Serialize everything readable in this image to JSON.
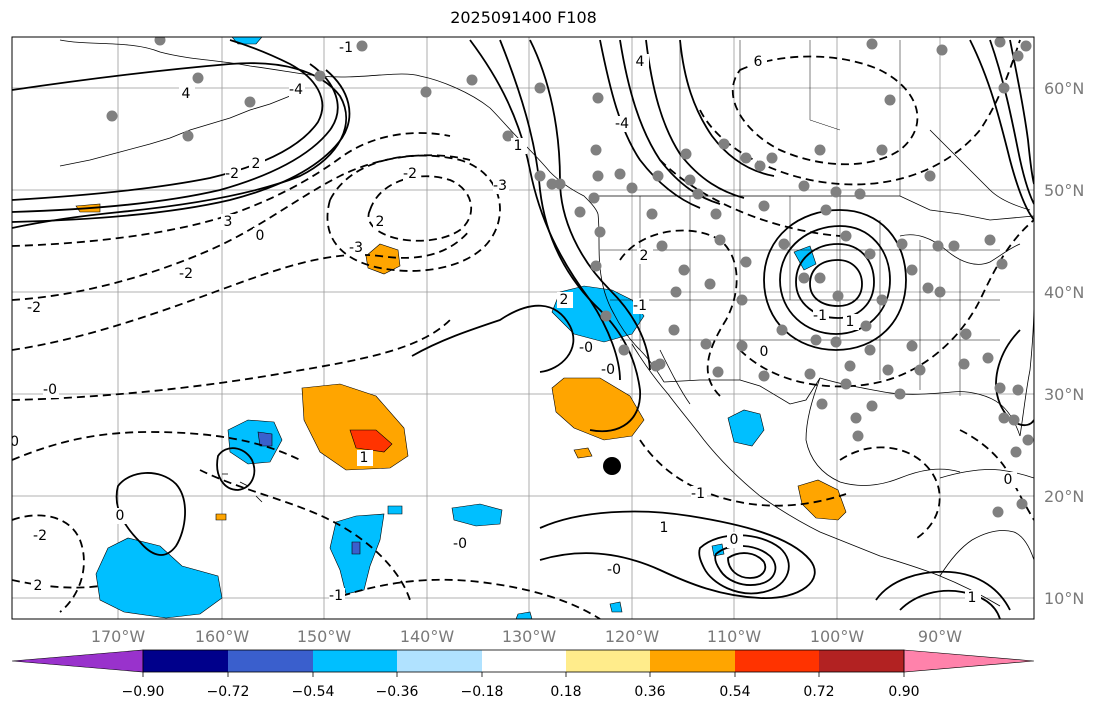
{
  "title": "2025091400 F108",
  "map": {
    "lat_labels": [
      "60°N",
      "50°N",
      "40°N",
      "30°N",
      "20°N",
      "10°N"
    ],
    "lon_labels": [
      "170°W",
      "160°W",
      "150°W",
      "140°W",
      "130°W",
      "120°W",
      "110°W",
      "100°W",
      "90°W"
    ],
    "contour_labels": [
      "-1",
      "4",
      "-4",
      "-2",
      "2",
      "3",
      "0",
      "4",
      "6",
      "-2",
      "2",
      "-3",
      "-4",
      "1",
      "-3",
      "2",
      "-2",
      "-2",
      "-0",
      "2",
      "-0",
      "0",
      "-1",
      "-0",
      "-0",
      "1",
      "-0",
      "-1",
      "-2",
      "0",
      "2",
      "1",
      "-0",
      "-1",
      "0",
      "-1",
      "1",
      "0",
      "1"
    ],
    "fill_colors": {
      "cyan": "#00bfff",
      "blue": "#3a5fcd",
      "orange": "#ffa500",
      "red": "#ff3300"
    },
    "marker_color": "#000000",
    "station_dot_color": "#808080"
  },
  "colorbar": {
    "tick_labels": [
      "−0.90",
      "−0.72",
      "−0.54",
      "−0.36",
      "−0.18",
      "0.18",
      "0.36",
      "0.54",
      "0.72",
      "0.90"
    ],
    "colors": [
      "#9932cc",
      "#00008b",
      "#3a5fcd",
      "#00bfff",
      "#b0e2ff",
      "#ffffff",
      "#ffec8b",
      "#ffa500",
      "#ff3300",
      "#b22222",
      "#ff82ab"
    ]
  }
}
